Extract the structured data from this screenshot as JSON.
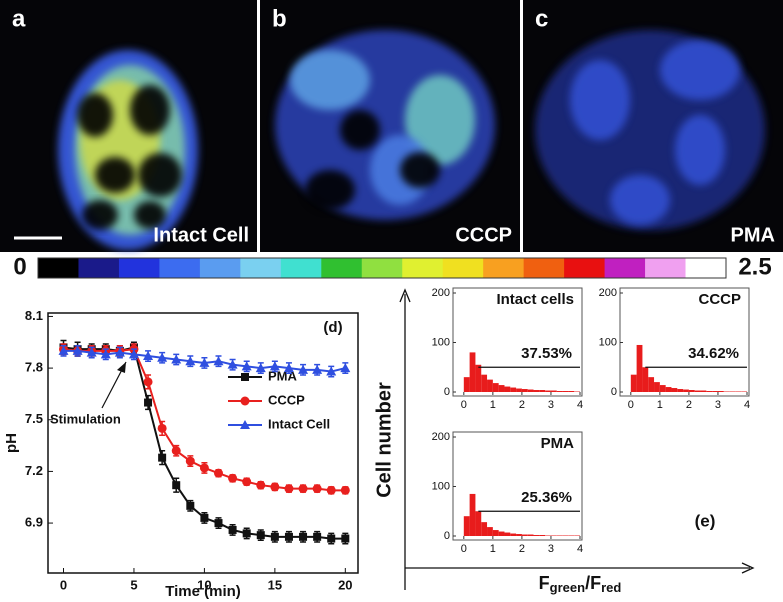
{
  "panels": [
    {
      "letter": "a",
      "caption": "Intact Cell"
    },
    {
      "letter": "b",
      "caption": "CCCP"
    },
    {
      "letter": "c",
      "caption": "PMA"
    }
  ],
  "colorbar": {
    "ticks": [
      0,
      2.5
    ]
  },
  "panel_e": {
    "label": "(e)",
    "y_label": "Cell number",
    "x_label": [
      "F",
      "green",
      "/F",
      "red"
    ]
  },
  "chart_data": [
    {
      "type": "line",
      "label": "(d)",
      "x_label": "Time (min)",
      "y_label": "pH",
      "annotation": "Stimulation",
      "x": [
        0,
        1,
        2,
        3,
        4,
        5,
        6,
        7,
        8,
        9,
        10,
        11,
        12,
        13,
        14,
        15,
        16,
        17,
        18,
        19,
        20
      ],
      "xlim": [
        -1.1,
        20.9
      ],
      "xticks": [
        0,
        5,
        10,
        15,
        20
      ],
      "ylim": [
        6.61,
        8.12
      ],
      "yticks": [
        6.9,
        7.2,
        7.5,
        7.8,
        8.1
      ],
      "legend": "upper right",
      "series": [
        {
          "name": "PMA",
          "color": "#111111",
          "marker": "square",
          "values": [
            7.92,
            7.91,
            7.91,
            7.91,
            7.9,
            7.92,
            7.6,
            7.28,
            7.12,
            7.0,
            6.93,
            6.9,
            6.86,
            6.84,
            6.83,
            6.82,
            6.82,
            6.82,
            6.82,
            6.81,
            6.81
          ],
          "errors": [
            0.04,
            0.04,
            0.03,
            0.03,
            0.03,
            0.03,
            0.04,
            0.04,
            0.04,
            0.03,
            0.03,
            0.03,
            0.03,
            0.03,
            0.03,
            0.03,
            0.03,
            0.03,
            0.03,
            0.03,
            0.03
          ]
        },
        {
          "name": "CCCP",
          "color": "#e8201e",
          "marker": "circle",
          "values": [
            7.91,
            7.9,
            7.9,
            7.9,
            7.9,
            7.91,
            7.72,
            7.45,
            7.32,
            7.26,
            7.22,
            7.19,
            7.16,
            7.14,
            7.12,
            7.11,
            7.1,
            7.1,
            7.1,
            7.09,
            7.09
          ],
          "errors": [
            0.03,
            0.03,
            0.03,
            0.03,
            0.03,
            0.03,
            0.04,
            0.04,
            0.03,
            0.03,
            0.03,
            0.02,
            0.02,
            0.02,
            0.02,
            0.02,
            0.02,
            0.02,
            0.02,
            0.02,
            0.02
          ]
        },
        {
          "name": "Intact Cell",
          "color": "#2f4fe0",
          "marker": "triangle",
          "values": [
            7.9,
            7.9,
            7.89,
            7.88,
            7.89,
            7.88,
            7.87,
            7.86,
            7.85,
            7.84,
            7.83,
            7.84,
            7.82,
            7.81,
            7.8,
            7.81,
            7.8,
            7.79,
            7.79,
            7.78,
            7.8
          ],
          "errors": [
            0.03,
            0.03,
            0.03,
            0.03,
            0.03,
            0.03,
            0.03,
            0.03,
            0.03,
            0.03,
            0.03,
            0.03,
            0.03,
            0.03,
            0.03,
            0.03,
            0.03,
            0.03,
            0.03,
            0.03,
            0.03
          ]
        }
      ]
    },
    {
      "type": "histogram",
      "title": "Intact cells",
      "annotation": "37.53%",
      "color": "#e81c1c",
      "bins": [
        0,
        0.2,
        0.4,
        0.6,
        0.8,
        1,
        1.2,
        1.4,
        1.6,
        1.8,
        2,
        2.2,
        2.4,
        2.6,
        2.8,
        3,
        3.2,
        3.4,
        3.6,
        3.8,
        4
      ],
      "values": [
        30,
        80,
        55,
        35,
        25,
        18,
        14,
        11,
        9,
        7,
        6,
        5,
        4,
        4,
        3,
        3,
        2,
        2,
        2,
        1
      ],
      "xlim": [
        -0.2,
        4
      ],
      "xticks": [
        0,
        1,
        2,
        3,
        4
      ],
      "ylim": [
        0,
        200
      ],
      "yticks": [
        0,
        100,
        200
      ]
    },
    {
      "type": "histogram",
      "title": "CCCP",
      "annotation": "34.62%",
      "color": "#e81c1c",
      "bins": [
        0,
        0.2,
        0.4,
        0.6,
        0.8,
        1,
        1.2,
        1.4,
        1.6,
        1.8,
        2,
        2.2,
        2.4,
        2.6,
        2.8,
        3,
        3.2,
        3.4,
        3.6,
        3.8,
        4
      ],
      "values": [
        35,
        95,
        50,
        30,
        20,
        14,
        10,
        8,
        6,
        5,
        4,
        3,
        3,
        2,
        2,
        2,
        1,
        1,
        1,
        1
      ],
      "xlim": [
        -0.2,
        4
      ],
      "xticks": [
        0,
        1,
        2,
        3,
        4
      ],
      "ylim": [
        0,
        200
      ],
      "yticks": [
        0,
        100,
        200
      ]
    },
    {
      "type": "histogram",
      "title": "PMA",
      "annotation": "25.36%",
      "color": "#e81c1c",
      "bins": [
        0,
        0.2,
        0.4,
        0.6,
        0.8,
        1,
        1.2,
        1.4,
        1.6,
        1.8,
        2,
        2.2,
        2.4,
        2.6,
        2.8,
        3,
        3.2,
        3.4,
        3.6,
        3.8,
        4
      ],
      "values": [
        40,
        85,
        50,
        28,
        18,
        12,
        9,
        7,
        5,
        4,
        3,
        3,
        2,
        2,
        1,
        1,
        1,
        1,
        1,
        1
      ],
      "xlim": [
        -0.2,
        4
      ],
      "xticks": [
        0,
        1,
        2,
        3,
        4
      ],
      "ylim": [
        0,
        200
      ],
      "yticks": [
        0,
        100,
        200
      ]
    }
  ]
}
